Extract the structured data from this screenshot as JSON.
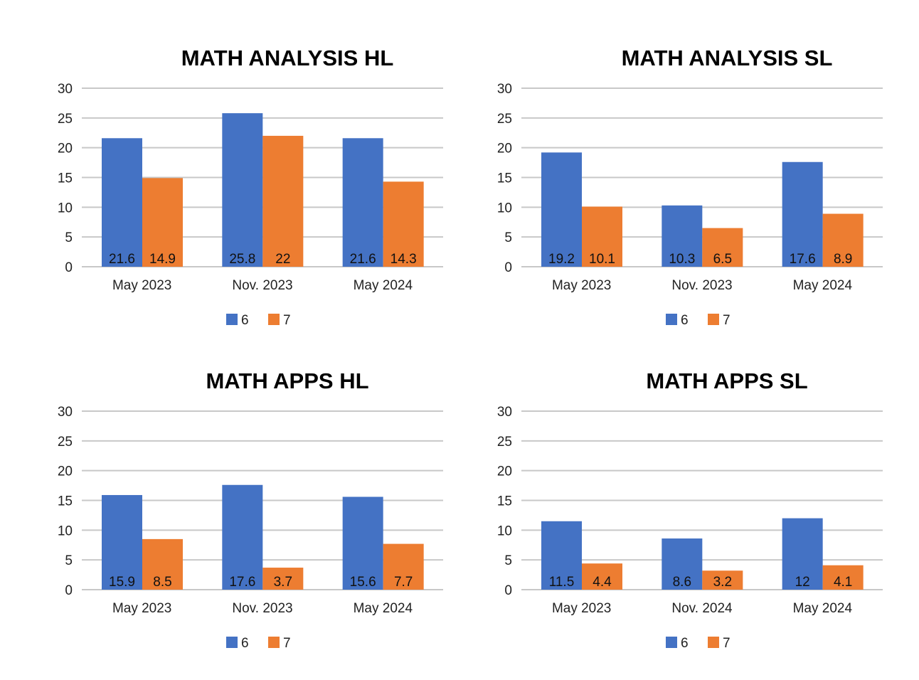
{
  "colors": {
    "six": "#4472C4",
    "seven": "#ED7D31",
    "grid": "#C8C8C8",
    "text": "#222222"
  },
  "chart_data": [
    {
      "type": "bar",
      "title": "MATH ANALYSIS HL",
      "categories": [
        "May 2023",
        "Nov. 2023",
        "May 2024"
      ],
      "series": [
        {
          "name": "6",
          "values": [
            21.6,
            25.8,
            21.6
          ]
        },
        {
          "name": "7",
          "values": [
            14.9,
            22,
            14.3
          ]
        }
      ],
      "ylim": [
        0,
        30
      ],
      "yticks": [
        0,
        5,
        10,
        15,
        20,
        25,
        30
      ],
      "grid": true,
      "legend": "bottom",
      "xlabel": "",
      "ylabel": ""
    },
    {
      "type": "bar",
      "title": "MATH ANALYSIS SL",
      "categories": [
        "May 2023",
        "Nov. 2023",
        "May 2024"
      ],
      "series": [
        {
          "name": "6",
          "values": [
            19.2,
            10.3,
            17.6
          ]
        },
        {
          "name": "7",
          "values": [
            10.1,
            6.5,
            8.9
          ]
        }
      ],
      "ylim": [
        0,
        30
      ],
      "yticks": [
        0,
        5,
        10,
        15,
        20,
        25,
        30
      ],
      "grid": true,
      "legend": "bottom",
      "xlabel": "",
      "ylabel": ""
    },
    {
      "type": "bar",
      "title": "MATH APPS HL",
      "categories": [
        "May 2023",
        "Nov. 2023",
        "May 2024"
      ],
      "series": [
        {
          "name": "6",
          "values": [
            15.9,
            17.6,
            15.6
          ]
        },
        {
          "name": "7",
          "values": [
            8.5,
            3.7,
            7.7
          ]
        }
      ],
      "ylim": [
        0,
        30
      ],
      "yticks": [
        0,
        5,
        10,
        15,
        20,
        25,
        30
      ],
      "grid": true,
      "legend": "bottom",
      "xlabel": "",
      "ylabel": ""
    },
    {
      "type": "bar",
      "title": "MATH APPS SL",
      "categories": [
        "May 2023",
        "Nov. 2024",
        "May 2024"
      ],
      "series": [
        {
          "name": "6",
          "values": [
            11.5,
            8.6,
            12
          ]
        },
        {
          "name": "7",
          "values": [
            4.4,
            3.2,
            4.1
          ]
        }
      ],
      "ylim": [
        0,
        30
      ],
      "yticks": [
        0,
        5,
        10,
        15,
        20,
        25,
        30
      ],
      "grid": true,
      "legend": "bottom",
      "xlabel": "",
      "ylabel": ""
    }
  ]
}
